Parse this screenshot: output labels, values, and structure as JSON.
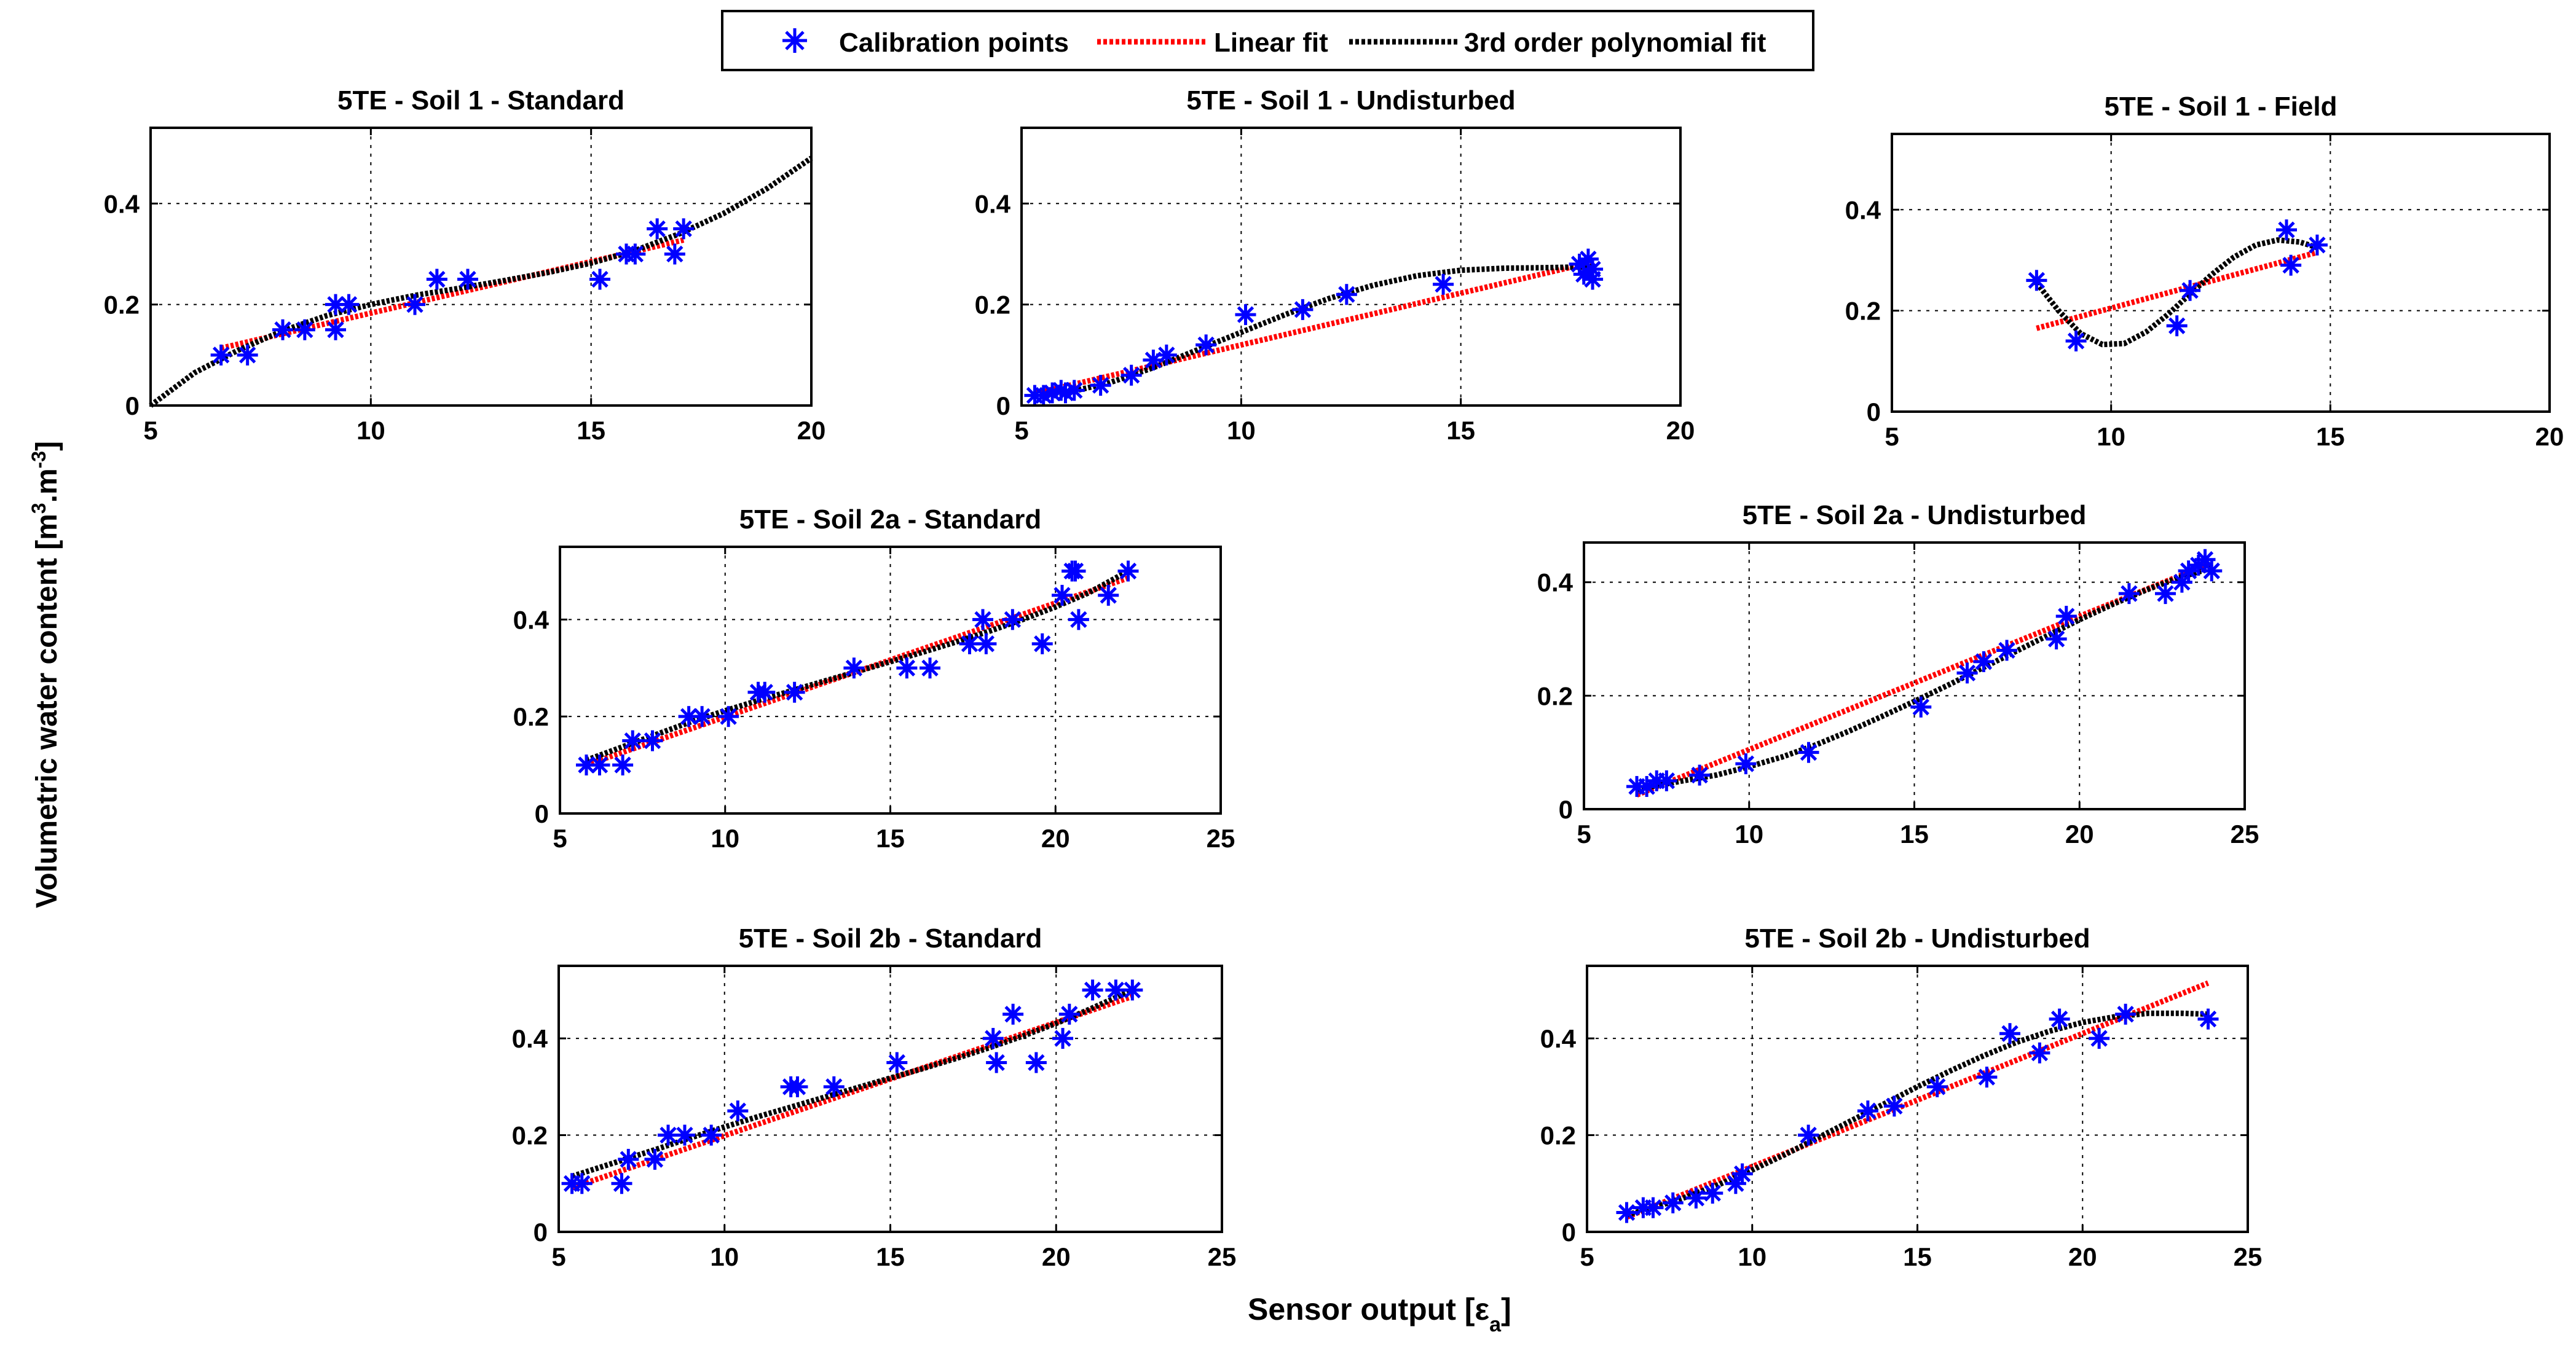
{
  "figure": {
    "ylabel_main": "Volumetric water content [m",
    "ylabel_sup1": "3",
    "ylabel_mid": ".m",
    "ylabel_sup2": "-3",
    "ylabel_end": "]",
    "xlabel_main": "Sensor output [ε",
    "xlabel_sub": "a",
    "xlabel_end": "]"
  },
  "legend": {
    "points_label": "Calibration points",
    "linear_label": "Linear fit",
    "poly_label": "3rd order polynomial fit"
  },
  "colors": {
    "points": "#0000ff",
    "linear": "#ff0000",
    "poly": "#000000",
    "grid": "#000000"
  },
  "chart_data": [
    {
      "type": "scatter",
      "title": "5TE - Soil 1 - Standard",
      "xlim": [
        5,
        20
      ],
      "ylim": [
        0,
        0.55
      ],
      "xticks": [
        5,
        10,
        15,
        20
      ],
      "xtick_labels": [
        "5",
        "10",
        "15",
        "20"
      ],
      "yticks": [
        0,
        0.2,
        0.4
      ],
      "ytick_labels": [
        "0",
        "0.2",
        "0.4"
      ],
      "points": [
        [
          6.6,
          0.1
        ],
        [
          7.2,
          0.1
        ],
        [
          8.0,
          0.15
        ],
        [
          8.5,
          0.15
        ],
        [
          9.2,
          0.15
        ],
        [
          9.2,
          0.2
        ],
        [
          9.5,
          0.2
        ],
        [
          11.0,
          0.2
        ],
        [
          11.5,
          0.25
        ],
        [
          12.2,
          0.25
        ],
        [
          15.2,
          0.25
        ],
        [
          15.8,
          0.3
        ],
        [
          16.0,
          0.3
        ],
        [
          16.5,
          0.35
        ],
        [
          16.9,
          0.3
        ],
        [
          17.1,
          0.35
        ]
      ],
      "linear": {
        "slope": 0.0204,
        "intercept": -0.021,
        "x_range": [
          6.6,
          17.1
        ]
      },
      "poly_points": [
        [
          5,
          0.0
        ],
        [
          6,
          0.065
        ],
        [
          7,
          0.11
        ],
        [
          8,
          0.148
        ],
        [
          9,
          0.178
        ],
        [
          10,
          0.2
        ],
        [
          11,
          0.218
        ],
        [
          12,
          0.232
        ],
        [
          13,
          0.247
        ],
        [
          14,
          0.263
        ],
        [
          15,
          0.282
        ],
        [
          16,
          0.307
        ],
        [
          17,
          0.34
        ],
        [
          18,
          0.38
        ],
        [
          19,
          0.43
        ],
        [
          20,
          0.49
        ]
      ]
    },
    {
      "type": "scatter",
      "title": "5TE - Soil 1 - Undisturbed",
      "xlim": [
        5,
        20
      ],
      "ylim": [
        0,
        0.55
      ],
      "xticks": [
        5,
        10,
        15,
        20
      ],
      "xtick_labels": [
        "5",
        "10",
        "15",
        "20"
      ],
      "yticks": [
        0,
        0.2,
        0.4
      ],
      "ytick_labels": [
        "0",
        "0.2",
        "0.4"
      ],
      "points": [
        [
          5.3,
          0.02
        ],
        [
          5.5,
          0.02
        ],
        [
          5.7,
          0.025
        ],
        [
          5.9,
          0.03
        ],
        [
          6.0,
          0.025
        ],
        [
          6.2,
          0.03
        ],
        [
          6.8,
          0.04
        ],
        [
          7.5,
          0.06
        ],
        [
          8.0,
          0.09
        ],
        [
          8.3,
          0.1
        ],
        [
          9.2,
          0.12
        ],
        [
          10.1,
          0.18
        ],
        [
          11.4,
          0.19
        ],
        [
          12.4,
          0.22
        ],
        [
          14.6,
          0.24
        ],
        [
          17.7,
          0.28
        ],
        [
          17.8,
          0.26
        ],
        [
          17.9,
          0.29
        ],
        [
          18.0,
          0.27
        ],
        [
          18.0,
          0.25
        ]
      ],
      "linear": {
        "slope": 0.0205,
        "intercept": -0.085,
        "x_range": [
          5.3,
          18.0
        ]
      },
      "poly_points": [
        [
          5.3,
          0.02
        ],
        [
          6,
          0.025
        ],
        [
          7,
          0.045
        ],
        [
          8,
          0.075
        ],
        [
          9,
          0.11
        ],
        [
          10,
          0.145
        ],
        [
          11,
          0.18
        ],
        [
          12,
          0.212
        ],
        [
          13,
          0.238
        ],
        [
          14,
          0.257
        ],
        [
          15,
          0.268
        ],
        [
          16,
          0.272
        ],
        [
          17,
          0.273
        ],
        [
          18,
          0.275
        ]
      ]
    },
    {
      "type": "scatter",
      "title": "5TE - Soil 1 - Field",
      "xlim": [
        5,
        20
      ],
      "ylim": [
        0,
        0.55
      ],
      "xticks": [
        5,
        10,
        15,
        20
      ],
      "xtick_labels": [
        "5",
        "10",
        "15",
        "20"
      ],
      "yticks": [
        0,
        0.2,
        0.4
      ],
      "ytick_labels": [
        "0",
        "0.2",
        "0.4"
      ],
      "points": [
        [
          8.3,
          0.26
        ],
        [
          9.2,
          0.14
        ],
        [
          11.5,
          0.17
        ],
        [
          11.8,
          0.24
        ],
        [
          14.0,
          0.36
        ],
        [
          14.1,
          0.29
        ],
        [
          14.7,
          0.33
        ]
      ],
      "linear": {
        "slope": 0.0235,
        "intercept": -0.03,
        "x_range": [
          8.3,
          14.7
        ]
      },
      "poly_points": [
        [
          8.3,
          0.255
        ],
        [
          8.8,
          0.2
        ],
        [
          9.3,
          0.155
        ],
        [
          9.8,
          0.133
        ],
        [
          10.3,
          0.135
        ],
        [
          10.8,
          0.158
        ],
        [
          11.3,
          0.193
        ],
        [
          11.8,
          0.233
        ],
        [
          12.3,
          0.272
        ],
        [
          12.8,
          0.306
        ],
        [
          13.3,
          0.33
        ],
        [
          13.8,
          0.34
        ],
        [
          14.3,
          0.336
        ],
        [
          14.7,
          0.325
        ]
      ]
    },
    {
      "type": "scatter",
      "title": "5TE - Soil 2a - Standard",
      "xlim": [
        5,
        25
      ],
      "ylim": [
        0,
        0.55
      ],
      "xticks": [
        5,
        10,
        15,
        20,
        25
      ],
      "xtick_labels": [
        "5",
        "10",
        "15",
        "20",
        "25"
      ],
      "yticks": [
        0,
        0.2,
        0.4
      ],
      "ytick_labels": [
        "0",
        "0.2",
        "0.4"
      ],
      "points": [
        [
          5.8,
          0.1
        ],
        [
          6.2,
          0.1
        ],
        [
          6.9,
          0.1
        ],
        [
          7.2,
          0.15
        ],
        [
          7.8,
          0.15
        ],
        [
          8.9,
          0.2
        ],
        [
          9.3,
          0.2
        ],
        [
          10.1,
          0.2
        ],
        [
          11.0,
          0.25
        ],
        [
          11.2,
          0.25
        ],
        [
          12.1,
          0.25
        ],
        [
          13.9,
          0.3
        ],
        [
          15.5,
          0.3
        ],
        [
          16.2,
          0.3
        ],
        [
          17.4,
          0.35
        ],
        [
          17.8,
          0.4
        ],
        [
          17.9,
          0.35
        ],
        [
          18.7,
          0.4
        ],
        [
          19.6,
          0.35
        ],
        [
          20.2,
          0.45
        ],
        [
          20.5,
          0.5
        ],
        [
          20.6,
          0.5
        ],
        [
          20.7,
          0.4
        ],
        [
          21.6,
          0.45
        ],
        [
          22.2,
          0.5
        ]
      ],
      "linear": {
        "slope": 0.0235,
        "intercept": -0.036,
        "x_range": [
          5.8,
          22.2
        ]
      },
      "poly_points": [
        [
          5.8,
          0.11
        ],
        [
          7,
          0.14
        ],
        [
          8,
          0.165
        ],
        [
          9,
          0.19
        ],
        [
          10,
          0.212
        ],
        [
          11,
          0.233
        ],
        [
          12,
          0.253
        ],
        [
          13,
          0.273
        ],
        [
          14,
          0.293
        ],
        [
          15,
          0.313
        ],
        [
          16,
          0.333
        ],
        [
          17,
          0.354
        ],
        [
          18,
          0.376
        ],
        [
          19,
          0.4
        ],
        [
          20,
          0.426
        ],
        [
          21,
          0.455
        ],
        [
          22.2,
          0.5
        ]
      ]
    },
    {
      "type": "scatter",
      "title": "5TE - Soil 2a - Undisturbed",
      "xlim": [
        5,
        25
      ],
      "ylim": [
        0,
        0.47
      ],
      "xticks": [
        5,
        10,
        15,
        20,
        25
      ],
      "xtick_labels": [
        "5",
        "10",
        "15",
        "20",
        "25"
      ],
      "yticks": [
        0,
        0.2,
        0.4
      ],
      "ytick_labels": [
        "0",
        "0.2",
        "0.4"
      ],
      "points": [
        [
          6.6,
          0.04
        ],
        [
          6.9,
          0.04
        ],
        [
          7.2,
          0.05
        ],
        [
          7.5,
          0.05
        ],
        [
          8.5,
          0.06
        ],
        [
          9.9,
          0.08
        ],
        [
          11.8,
          0.1
        ],
        [
          15.2,
          0.18
        ],
        [
          16.6,
          0.24
        ],
        [
          17.1,
          0.26
        ],
        [
          17.8,
          0.28
        ],
        [
          19.3,
          0.3
        ],
        [
          19.6,
          0.34
        ],
        [
          21.5,
          0.38
        ],
        [
          22.6,
          0.38
        ],
        [
          23.1,
          0.4
        ],
        [
          23.3,
          0.42
        ],
        [
          23.6,
          0.43
        ],
        [
          23.8,
          0.44
        ],
        [
          24.0,
          0.42
        ]
      ],
      "linear": {
        "slope": 0.0235,
        "intercept": -0.13,
        "x_range": [
          6.6,
          24.0
        ]
      },
      "poly_points": [
        [
          6.6,
          0.035
        ],
        [
          8,
          0.05
        ],
        [
          9,
          0.06
        ],
        [
          10,
          0.075
        ],
        [
          11,
          0.092
        ],
        [
          12,
          0.113
        ],
        [
          13,
          0.137
        ],
        [
          14,
          0.163
        ],
        [
          15,
          0.19
        ],
        [
          16,
          0.218
        ],
        [
          17,
          0.247
        ],
        [
          18,
          0.276
        ],
        [
          19,
          0.305
        ],
        [
          20,
          0.334
        ],
        [
          21,
          0.361
        ],
        [
          22,
          0.386
        ],
        [
          23,
          0.408
        ],
        [
          24,
          0.425
        ]
      ]
    },
    {
      "type": "scatter",
      "title": "5TE - Soil 2b - Standard",
      "xlim": [
        5,
        25
      ],
      "ylim": [
        0,
        0.55
      ],
      "xticks": [
        5,
        10,
        15,
        20,
        25
      ],
      "xtick_labels": [
        "5",
        "10",
        "15",
        "20",
        "25"
      ],
      "yticks": [
        0,
        0.2,
        0.4
      ],
      "ytick_labels": [
        "0",
        "0.2",
        "0.4"
      ],
      "points": [
        [
          5.4,
          0.1
        ],
        [
          5.7,
          0.1
        ],
        [
          6.9,
          0.1
        ],
        [
          7.1,
          0.15
        ],
        [
          7.9,
          0.15
        ],
        [
          8.3,
          0.2
        ],
        [
          8.8,
          0.2
        ],
        [
          9.6,
          0.2
        ],
        [
          10.4,
          0.25
        ],
        [
          12.0,
          0.3
        ],
        [
          12.2,
          0.3
        ],
        [
          13.3,
          0.3
        ],
        [
          15.2,
          0.35
        ],
        [
          18.1,
          0.4
        ],
        [
          18.2,
          0.35
        ],
        [
          18.7,
          0.45
        ],
        [
          19.4,
          0.35
        ],
        [
          20.2,
          0.4
        ],
        [
          20.4,
          0.45
        ],
        [
          21.1,
          0.5
        ],
        [
          21.8,
          0.5
        ],
        [
          22.3,
          0.5
        ]
      ],
      "linear": {
        "slope": 0.0234,
        "intercept": -0.035,
        "x_range": [
          5.4,
          22.3
        ]
      },
      "poly_points": [
        [
          5.4,
          0.115
        ],
        [
          7,
          0.15
        ],
        [
          8,
          0.172
        ],
        [
          9,
          0.195
        ],
        [
          10,
          0.217
        ],
        [
          11,
          0.238
        ],
        [
          12,
          0.258
        ],
        [
          13,
          0.278
        ],
        [
          14,
          0.298
        ],
        [
          15,
          0.318
        ],
        [
          16,
          0.338
        ],
        [
          17,
          0.359
        ],
        [
          18,
          0.381
        ],
        [
          19,
          0.405
        ],
        [
          20,
          0.431
        ],
        [
          21,
          0.46
        ],
        [
          22.3,
          0.5
        ]
      ]
    },
    {
      "type": "scatter",
      "title": "5TE - Soil 2b - Undisturbed",
      "xlim": [
        5,
        25
      ],
      "ylim": [
        0,
        0.55
      ],
      "xticks": [
        5,
        10,
        15,
        20,
        25
      ],
      "xtick_labels": [
        "5",
        "10",
        "15",
        "20",
        "25"
      ],
      "yticks": [
        0,
        0.2,
        0.4
      ],
      "ytick_labels": [
        "0",
        "0.2",
        "0.4"
      ],
      "points": [
        [
          6.2,
          0.04
        ],
        [
          6.7,
          0.05
        ],
        [
          7.0,
          0.05
        ],
        [
          7.6,
          0.06
        ],
        [
          8.3,
          0.07
        ],
        [
          8.8,
          0.08
        ],
        [
          9.5,
          0.1
        ],
        [
          9.7,
          0.12
        ],
        [
          11.7,
          0.2
        ],
        [
          13.5,
          0.25
        ],
        [
          14.3,
          0.26
        ],
        [
          15.6,
          0.3
        ],
        [
          17.1,
          0.32
        ],
        [
          17.8,
          0.41
        ],
        [
          18.7,
          0.37
        ],
        [
          19.3,
          0.44
        ],
        [
          20.5,
          0.4
        ],
        [
          21.3,
          0.45
        ],
        [
          23.8,
          0.44
        ]
      ],
      "linear": {
        "slope": 0.0275,
        "intercept": -0.14,
        "x_range": [
          6.2,
          23.8
        ]
      },
      "poly_points": [
        [
          6.2,
          0.035
        ],
        [
          7,
          0.05
        ],
        [
          8,
          0.072
        ],
        [
          9,
          0.098
        ],
        [
          10,
          0.128
        ],
        [
          11,
          0.16
        ],
        [
          12,
          0.195
        ],
        [
          13,
          0.23
        ],
        [
          14,
          0.265
        ],
        [
          15,
          0.3
        ],
        [
          16,
          0.333
        ],
        [
          17,
          0.364
        ],
        [
          18,
          0.392
        ],
        [
          19,
          0.415
        ],
        [
          20,
          0.433
        ],
        [
          21,
          0.445
        ],
        [
          22,
          0.452
        ],
        [
          23,
          0.452
        ],
        [
          23.8,
          0.45
        ]
      ]
    }
  ]
}
